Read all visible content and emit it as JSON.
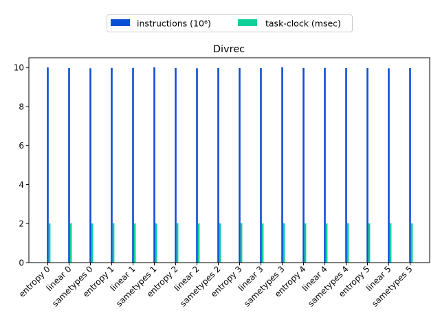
{
  "chart_data": {
    "type": "bar",
    "title": "Divrec",
    "xlabel": "",
    "ylabel": "",
    "ylim": [
      0,
      10.5
    ],
    "yticks": [
      0,
      2,
      4,
      6,
      8,
      10
    ],
    "grid": false,
    "legend_position": "top-center",
    "categories": [
      "entropy 0",
      "linear 0",
      "sametypes 0",
      "entropy 1",
      "linear 1",
      "sametypes 1",
      "entropy 2",
      "linear 2",
      "sametypes 2",
      "entropy 3",
      "linear 3",
      "sametypes 3",
      "entropy 4",
      "linear 4",
      "sametypes 4",
      "entropy 5",
      "linear 5",
      "sametypes 5"
    ],
    "series": [
      {
        "name": "instructions (10⁶)",
        "color": "#0a4fd6",
        "values": [
          10.0,
          9.97,
          9.96,
          9.98,
          9.98,
          10.01,
          9.97,
          9.96,
          9.97,
          9.97,
          9.97,
          10.01,
          9.98,
          9.98,
          9.97,
          9.97,
          9.96,
          9.97
        ]
      },
      {
        "name": "task-clock (msec)",
        "color": "#0fcf9a",
        "values": [
          2.01,
          2.02,
          2.01,
          2.02,
          2.01,
          2.01,
          2.02,
          2.01,
          2.01,
          2.02,
          2.01,
          2.02,
          2.01,
          2.01,
          2.02,
          2.01,
          2.02,
          2.01
        ]
      }
    ]
  }
}
